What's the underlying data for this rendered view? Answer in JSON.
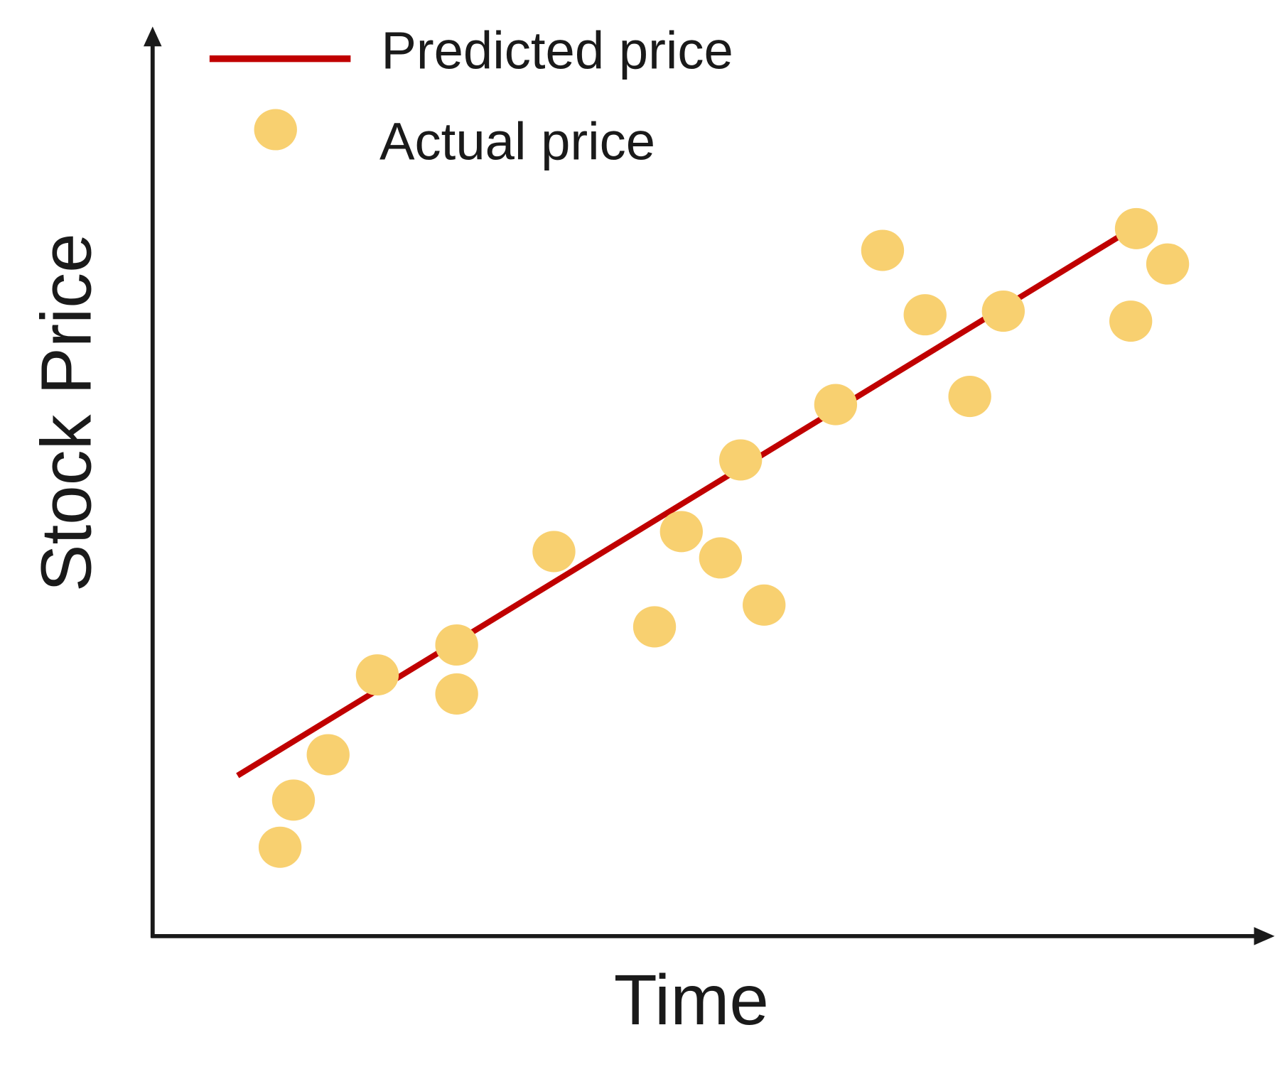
{
  "chart_data": {
    "type": "scatter",
    "title": "",
    "xlabel": "Time",
    "ylabel": "Stock Price",
    "xlim": [
      0,
      100
    ],
    "ylim": [
      0,
      100
    ],
    "grid": false,
    "ticks": false,
    "legend_placement": "top-left",
    "colors": {
      "predicted": "#c00000",
      "actual": "#f8d070",
      "axis": "#1a1a1a"
    },
    "series": [
      {
        "name": "Predicted price",
        "type": "line",
        "x": [
          7.6,
          86.7
        ],
        "y": [
          17.7,
          77.3
        ]
      },
      {
        "name": "Actual price",
        "type": "scatter",
        "x": [
          11.4,
          12.6,
          15.7,
          20.1,
          27.2,
          27.2,
          35.9,
          44.9,
          47.3,
          50.8,
          52.6,
          54.7,
          61.1,
          65.3,
          69.1,
          73.1,
          76.1,
          88.0,
          90.8,
          87.5
        ],
        "y": [
          9.8,
          15.0,
          20.0,
          28.8,
          32.1,
          26.7,
          42.4,
          34.1,
          44.6,
          41.7,
          52.5,
          36.5,
          58.6,
          75.6,
          68.5,
          59.5,
          68.9,
          78.0,
          74.1,
          67.8
        ]
      }
    ]
  }
}
